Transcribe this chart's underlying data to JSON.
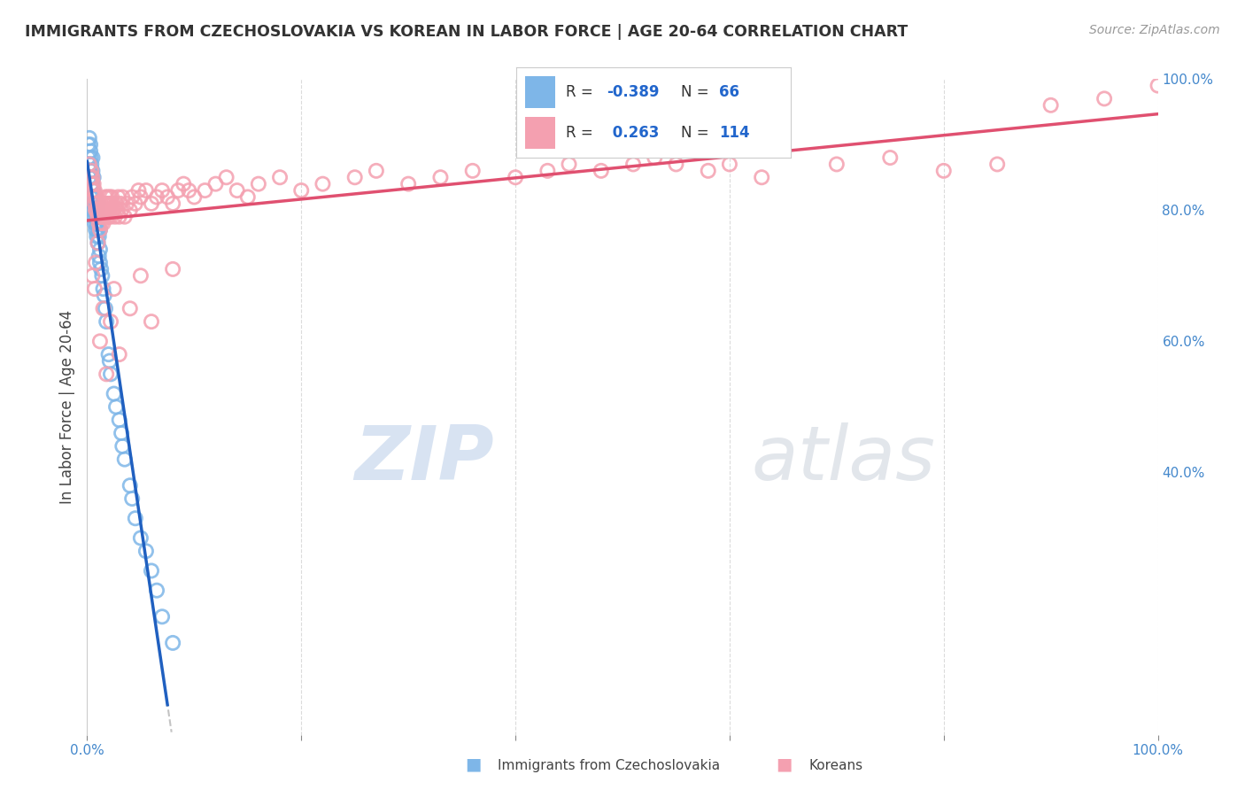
{
  "title": "IMMIGRANTS FROM CZECHOSLOVAKIA VS KOREAN IN LABOR FORCE | AGE 20-64 CORRELATION CHART",
  "source": "Source: ZipAtlas.com",
  "ylabel": "In Labor Force | Age 20-64",
  "watermark": "ZIPatlas",
  "legend_blue_R": "-0.389",
  "legend_blue_N": "66",
  "legend_pink_R": "0.263",
  "legend_pink_N": "114",
  "right_yticks": [
    "40.0%",
    "60.0%",
    "80.0%",
    "100.0%"
  ],
  "right_ytick_vals": [
    0.4,
    0.6,
    0.8,
    1.0
  ],
  "blue_color": "#7EB6E8",
  "pink_color": "#F4A0B0",
  "blue_line_color": "#2060C0",
  "pink_line_color": "#E05070",
  "background_color": "#FFFFFF",
  "grid_color": "#CCCCCC",
  "blue_scatter_x": [
    0.001,
    0.001,
    0.002,
    0.002,
    0.002,
    0.003,
    0.003,
    0.003,
    0.003,
    0.003,
    0.004,
    0.004,
    0.004,
    0.004,
    0.005,
    0.005,
    0.005,
    0.005,
    0.005,
    0.005,
    0.006,
    0.006,
    0.006,
    0.006,
    0.007,
    0.007,
    0.007,
    0.008,
    0.008,
    0.008,
    0.009,
    0.009,
    0.009,
    0.01,
    0.01,
    0.01,
    0.01,
    0.011,
    0.011,
    0.012,
    0.012,
    0.012,
    0.013,
    0.014,
    0.015,
    0.016,
    0.017,
    0.018,
    0.02,
    0.021,
    0.022,
    0.025,
    0.027,
    0.03,
    0.032,
    0.033,
    0.035,
    0.04,
    0.042,
    0.045,
    0.05,
    0.055,
    0.06,
    0.065,
    0.07,
    0.08
  ],
  "blue_scatter_y": [
    0.88,
    0.9,
    0.85,
    0.87,
    0.91,
    0.82,
    0.86,
    0.88,
    0.89,
    0.9,
    0.84,
    0.85,
    0.86,
    0.87,
    0.8,
    0.82,
    0.84,
    0.85,
    0.86,
    0.88,
    0.79,
    0.81,
    0.83,
    0.85,
    0.78,
    0.8,
    0.82,
    0.77,
    0.79,
    0.81,
    0.76,
    0.78,
    0.8,
    0.75,
    0.77,
    0.79,
    0.81,
    0.73,
    0.76,
    0.72,
    0.74,
    0.77,
    0.71,
    0.7,
    0.68,
    0.67,
    0.65,
    0.63,
    0.58,
    0.57,
    0.55,
    0.52,
    0.5,
    0.48,
    0.46,
    0.44,
    0.42,
    0.38,
    0.36,
    0.33,
    0.3,
    0.28,
    0.25,
    0.22,
    0.18,
    0.14
  ],
  "pink_scatter_x": [
    0.002,
    0.003,
    0.004,
    0.004,
    0.005,
    0.005,
    0.006,
    0.006,
    0.007,
    0.007,
    0.008,
    0.008,
    0.009,
    0.009,
    0.01,
    0.01,
    0.011,
    0.011,
    0.012,
    0.012,
    0.013,
    0.013,
    0.014,
    0.014,
    0.015,
    0.015,
    0.016,
    0.016,
    0.017,
    0.017,
    0.018,
    0.018,
    0.019,
    0.019,
    0.02,
    0.02,
    0.021,
    0.021,
    0.022,
    0.022,
    0.023,
    0.023,
    0.024,
    0.025,
    0.026,
    0.027,
    0.028,
    0.029,
    0.03,
    0.031,
    0.032,
    0.033,
    0.035,
    0.037,
    0.04,
    0.042,
    0.045,
    0.048,
    0.05,
    0.055,
    0.06,
    0.065,
    0.07,
    0.075,
    0.08,
    0.085,
    0.09,
    0.095,
    0.1,
    0.11,
    0.12,
    0.13,
    0.14,
    0.15,
    0.16,
    0.18,
    0.2,
    0.22,
    0.25,
    0.27,
    0.3,
    0.33,
    0.36,
    0.4,
    0.43,
    0.45,
    0.48,
    0.51,
    0.53,
    0.55,
    0.58,
    0.6,
    0.63,
    0.7,
    0.75,
    0.8,
    0.85,
    0.9,
    0.95,
    1.0,
    0.005,
    0.007,
    0.008,
    0.01,
    0.012,
    0.015,
    0.018,
    0.022,
    0.025,
    0.03,
    0.04,
    0.05,
    0.06,
    0.08
  ],
  "pink_scatter_y": [
    0.87,
    0.85,
    0.84,
    0.86,
    0.83,
    0.85,
    0.82,
    0.84,
    0.81,
    0.83,
    0.8,
    0.82,
    0.8,
    0.82,
    0.79,
    0.81,
    0.78,
    0.8,
    0.77,
    0.79,
    0.78,
    0.8,
    0.79,
    0.81,
    0.78,
    0.8,
    0.79,
    0.81,
    0.8,
    0.82,
    0.79,
    0.81,
    0.8,
    0.82,
    0.79,
    0.81,
    0.8,
    0.82,
    0.79,
    0.81,
    0.8,
    0.82,
    0.81,
    0.8,
    0.79,
    0.81,
    0.8,
    0.82,
    0.79,
    0.81,
    0.8,
    0.82,
    0.79,
    0.81,
    0.8,
    0.82,
    0.81,
    0.83,
    0.82,
    0.83,
    0.81,
    0.82,
    0.83,
    0.82,
    0.81,
    0.83,
    0.84,
    0.83,
    0.82,
    0.83,
    0.84,
    0.85,
    0.83,
    0.82,
    0.84,
    0.85,
    0.83,
    0.84,
    0.85,
    0.86,
    0.84,
    0.85,
    0.86,
    0.85,
    0.86,
    0.87,
    0.86,
    0.87,
    0.88,
    0.87,
    0.86,
    0.87,
    0.85,
    0.87,
    0.88,
    0.86,
    0.87,
    0.96,
    0.97,
    0.99,
    0.7,
    0.68,
    0.72,
    0.75,
    0.6,
    0.65,
    0.55,
    0.63,
    0.68,
    0.58,
    0.65,
    0.7,
    0.63,
    0.71
  ]
}
